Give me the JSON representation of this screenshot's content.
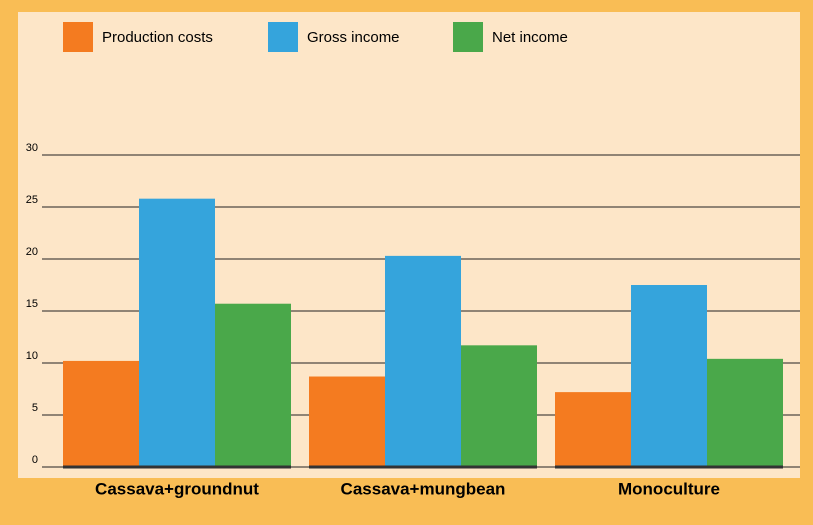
{
  "chart_data": {
    "type": "bar",
    "categories": [
      "Cassava+groundnut",
      "Cassava+mungbean",
      "Monoculture"
    ],
    "series": [
      {
        "name": "Production costs",
        "color": "#f47b20",
        "values": [
          10.2,
          8.7,
          7.2
        ]
      },
      {
        "name": "Gross income",
        "color": "#35a4dc",
        "values": [
          25.8,
          20.3,
          17.5
        ]
      },
      {
        "name": "Net income",
        "color": "#4aa84a",
        "values": [
          15.7,
          11.7,
          10.4
        ]
      }
    ],
    "ylim": [
      0,
      30
    ],
    "yticks": [
      0,
      5,
      10,
      15,
      20,
      25,
      30
    ],
    "grid": true
  }
}
